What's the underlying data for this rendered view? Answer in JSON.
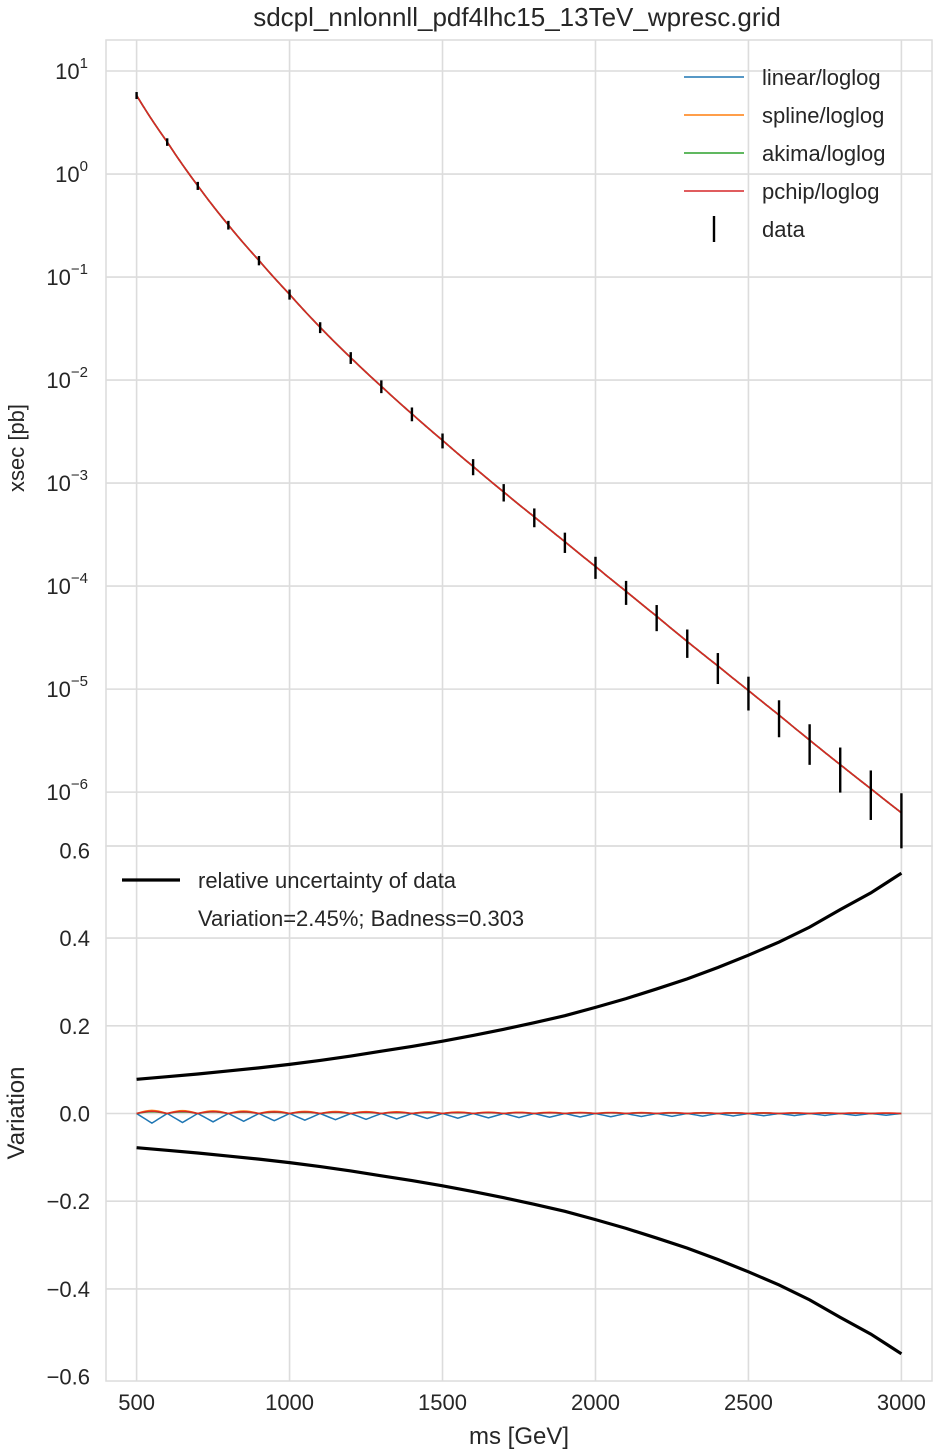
{
  "chart_data": {
    "type": "line",
    "title": "sdcpl_nnlonnll_pdf4lhc15_13TeV_wpresc.grid",
    "xlabel": "ms [GeV]",
    "xlim": [
      400,
      3100
    ],
    "x_ticks": [
      "500",
      "1000",
      "1500",
      "2000",
      "2500",
      "3000"
    ],
    "grid": true,
    "panels": [
      {
        "id": "top",
        "ylabel": "xsec [pb]",
        "yscale": "log",
        "ylim": [
          3e-07,
          20
        ],
        "y_ticks": [
          {
            "base": "10",
            "exp": "1"
          },
          {
            "base": "10",
            "exp": "0"
          },
          {
            "base": "10",
            "exp": "−1"
          },
          {
            "base": "10",
            "exp": "−2"
          },
          {
            "base": "10",
            "exp": "−3"
          },
          {
            "base": "10",
            "exp": "−4"
          },
          {
            "base": "10",
            "exp": "−5"
          },
          {
            "base": "10",
            "exp": "−6"
          }
        ],
        "legend_position": "top-right",
        "series": [
          {
            "name": "linear/loglog",
            "color": "#1f77b4"
          },
          {
            "name": "spline/loglog",
            "color": "#ff7f0e"
          },
          {
            "name": "akima/loglog",
            "color": "#2ca02c"
          },
          {
            "name": "pchip/loglog",
            "color": "#d62728"
          }
        ],
        "data_label": "data",
        "x": [
          500,
          600,
          700,
          800,
          900,
          1000,
          1100,
          1200,
          1300,
          1400,
          1500,
          1600,
          1700,
          1800,
          1900,
          2000,
          2100,
          2200,
          2300,
          2400,
          2500,
          2600,
          2700,
          2800,
          2900,
          3000
        ],
        "y": [
          5.8,
          2.05,
          0.77,
          0.32,
          0.145,
          0.068,
          0.0325,
          0.0165,
          0.0087,
          0.0047,
          0.0026,
          0.00145,
          0.00082,
          0.00047,
          0.00027,
          0.000155,
          8.9e-05,
          5.1e-05,
          2.9e-05,
          1.68e-05,
          9.7e-06,
          5.6e-06,
          3.2e-06,
          1.85e-06,
          1.08e-06,
          6.3e-07
        ],
        "rel_unc": [
          0.078,
          0.084,
          0.09,
          0.097,
          0.104,
          0.112,
          0.121,
          0.131,
          0.142,
          0.153,
          0.165,
          0.178,
          0.192,
          0.207,
          0.223,
          0.242,
          0.262,
          0.284,
          0.307,
          0.333,
          0.361,
          0.391,
          0.425,
          0.465,
          0.503,
          0.548
        ]
      },
      {
        "id": "bottom",
        "ylabel": "Variation",
        "ylim": [
          -0.61,
          0.61
        ],
        "y_ticks": [
          "0.6",
          "0.4",
          "0.2",
          "0.0",
          "−0.2",
          "−0.4",
          "−0.6"
        ],
        "legend_position": "top-left",
        "legend_label": "relative uncertainty of data",
        "annotation": "Variation=2.45%; Badness=0.303",
        "uncertainty_color": "#000000",
        "variation_series": [
          {
            "name": "linear/loglog",
            "color": "#1f77b4",
            "amp": -0.022
          },
          {
            "name": "spline/loglog",
            "color": "#ff7f0e",
            "amp": 0.007
          },
          {
            "name": "akima/loglog",
            "color": "#2ca02c",
            "amp": 0.004
          },
          {
            "name": "pchip/loglog",
            "color": "#d62728",
            "amp": 0.005
          }
        ]
      }
    ]
  }
}
